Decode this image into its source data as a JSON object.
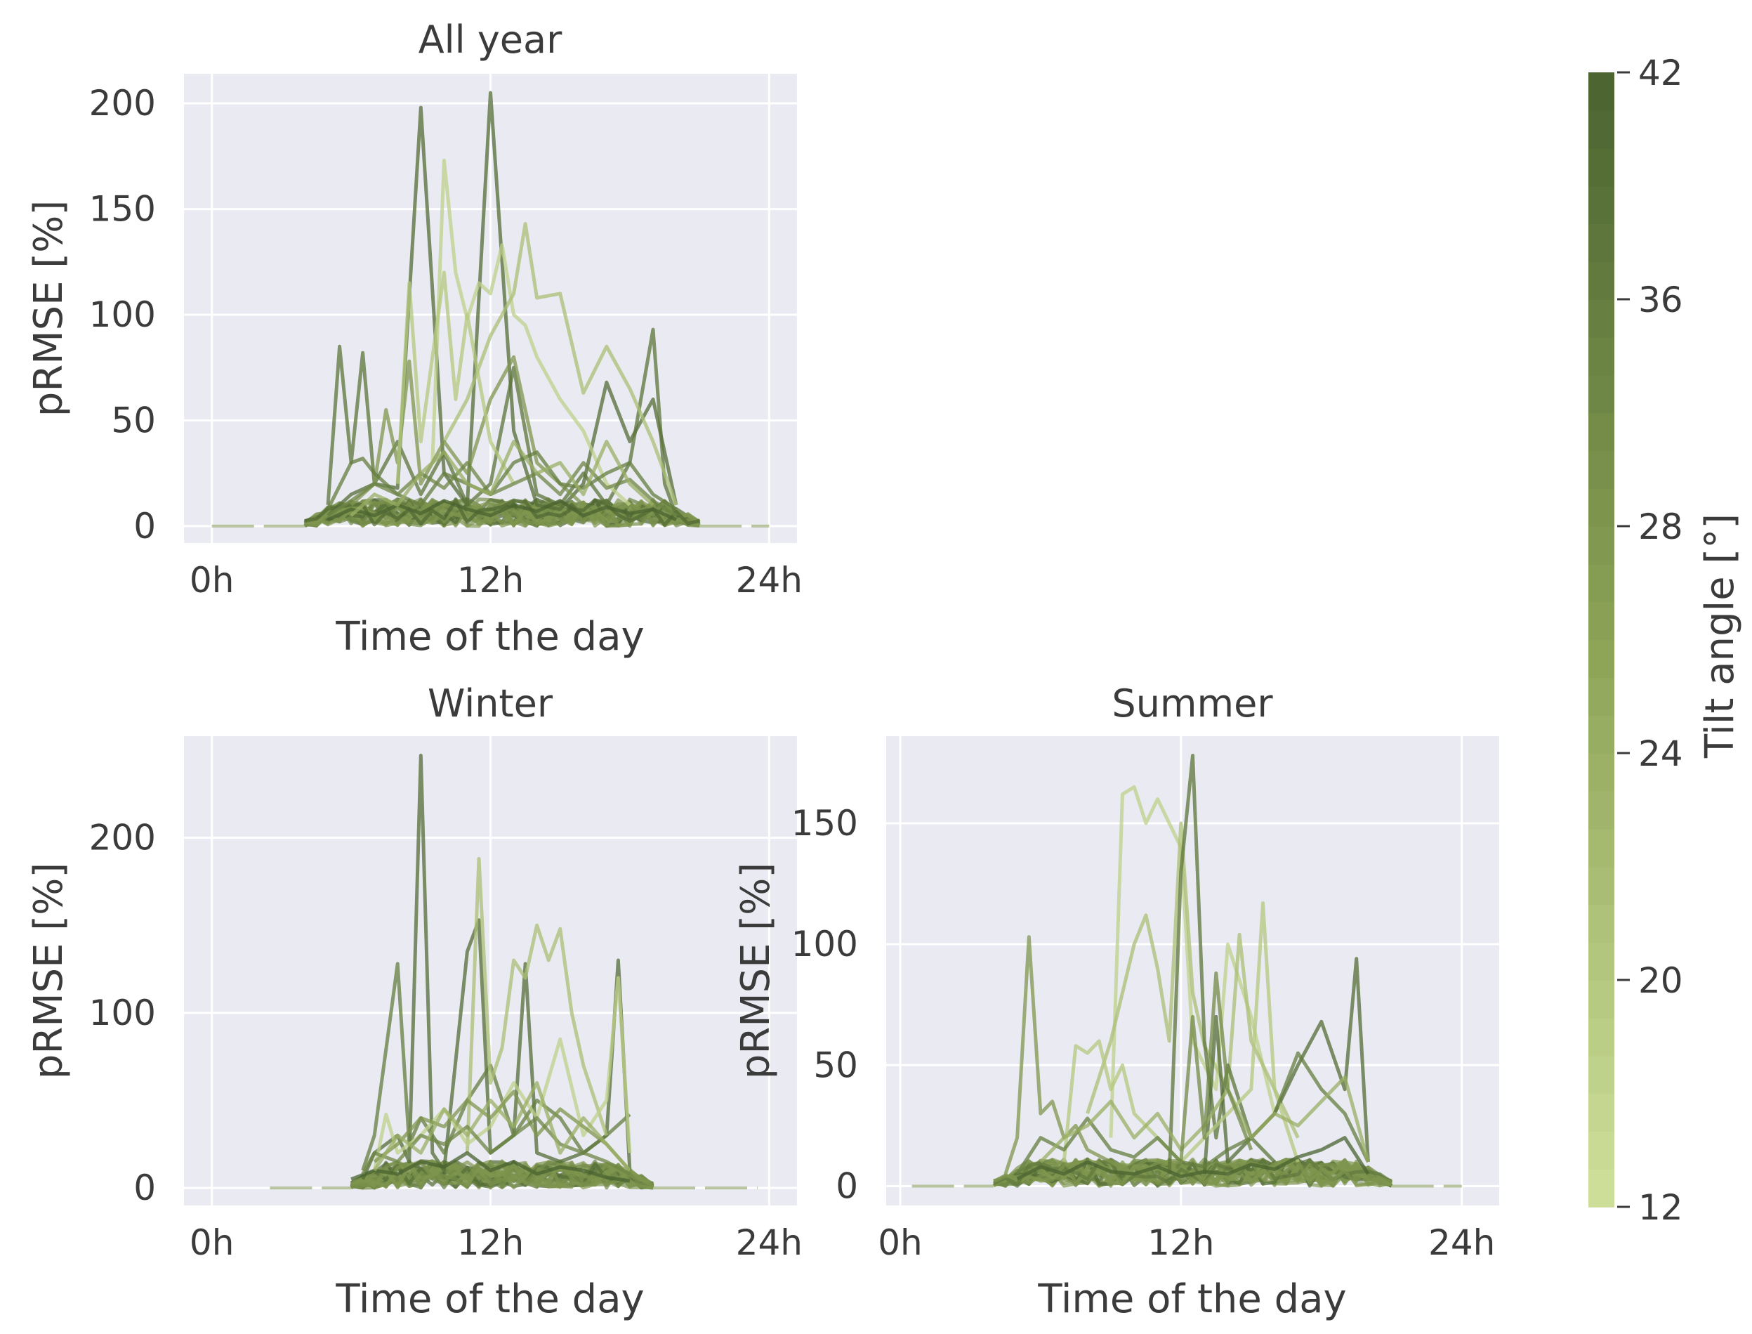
{
  "chart_data": [
    {
      "type": "line",
      "title": "All year",
      "xlabel": "Time of the day",
      "ylabel": "pRMSE [%]",
      "xlim": [
        -1.2,
        25.2
      ],
      "ylim": [
        -8,
        214
      ],
      "xticks": [
        {
          "v": 0,
          "label": "0h"
        },
        {
          "v": 12,
          "label": "12h"
        },
        {
          "v": 24,
          "label": "24h"
        }
      ],
      "yticks": [
        {
          "v": 0,
          "label": "0"
        },
        {
          "v": 50,
          "label": "50"
        },
        {
          "v": 100,
          "label": "100"
        },
        {
          "v": 150,
          "label": "150"
        },
        {
          "v": 200,
          "label": "200"
        }
      ],
      "day_range": [
        4.0,
        21.0
      ],
      "flat_range": [
        0,
        24
      ],
      "series": [
        {
          "tilt": 40,
          "x": [
            5.0,
            6.0,
            7.0,
            8.0,
            9.0,
            10.0,
            11.0,
            12.0,
            13.0,
            14.0,
            15.0,
            16.0,
            17.0,
            18.0,
            19.0,
            20.0
          ],
          "y": [
            5,
            15,
            20,
            18,
            198,
            25,
            10,
            205,
            45,
            10,
            8,
            20,
            68,
            40,
            60,
            10
          ]
        },
        {
          "tilt": 38,
          "x": [
            5.0,
            5.5,
            6.0,
            6.5,
            7.0,
            8.0,
            9.0,
            10.0,
            11.0,
            12.0,
            13.0,
            14.0,
            15.0,
            16.0,
            17.0,
            18.0,
            19.0,
            19.5,
            20.0
          ],
          "y": [
            10,
            85,
            30,
            82,
            20,
            40,
            15,
            35,
            10,
            20,
            75,
            15,
            10,
            25,
            10,
            30,
            93,
            20,
            5
          ]
        },
        {
          "tilt": 16,
          "x": [
            9.5,
            10.0,
            10.5,
            11.0,
            11.5,
            12.0,
            12.5,
            13.0,
            13.5,
            14.0,
            15.0,
            16.0,
            17.0,
            18.0
          ],
          "y": [
            30,
            173,
            120,
            98,
            115,
            110,
            133,
            100,
            95,
            80,
            60,
            45,
            20,
            10
          ]
        },
        {
          "tilt": 20,
          "x": [
            10.0,
            11.0,
            12.0,
            13.0,
            13.5,
            14.0,
            15.0,
            16.0,
            17.0,
            18.0,
            19.0,
            20.0
          ],
          "y": [
            40,
            60,
            90,
            110,
            143,
            108,
            110,
            63,
            85,
            65,
            40,
            10
          ]
        },
        {
          "tilt": 30,
          "x": [
            6.0,
            7.0,
            7.5,
            8.0,
            8.5,
            9.0,
            10.0,
            11.0,
            12.0,
            13.0,
            14.0,
            15.0,
            16.0
          ],
          "y": [
            10,
            20,
            55,
            30,
            78,
            20,
            40,
            25,
            60,
            80,
            30,
            20,
            10
          ]
        },
        {
          "tilt": 18,
          "x": [
            8.0,
            8.5,
            9.0,
            9.5,
            10.0,
            10.5,
            11.0,
            12.0,
            13.0
          ],
          "y": [
            20,
            115,
            40,
            80,
            120,
            60,
            100,
            40,
            20
          ]
        },
        {
          "tilt": 36,
          "x": [
            5.0,
            6.0,
            6.5,
            7.0,
            8.0,
            9.0,
            10.0,
            11.0,
            12.0,
            13.0,
            14.0,
            15.0,
            16.0,
            17.0,
            18.0,
            19.0,
            20.0
          ],
          "y": [
            8,
            30,
            32,
            25,
            15,
            10,
            25,
            20,
            15,
            30,
            35,
            20,
            18,
            25,
            30,
            15,
            8
          ]
        },
        {
          "tilt": 34,
          "x": [
            5.0,
            6.0,
            7.0,
            8.0,
            9.0,
            10.0,
            11.0,
            12.0,
            13.0,
            14.0,
            15.0,
            16.0,
            17.0,
            18.0,
            19.0,
            20.0
          ],
          "y": [
            5,
            12,
            20,
            15,
            25,
            18,
            30,
            15,
            20,
            25,
            15,
            30,
            18,
            22,
            12,
            5
          ]
        },
        {
          "tilt": 42,
          "x": [
            5.0,
            6.0,
            7.0,
            8.0,
            9.0,
            10.0,
            11.0,
            12.0,
            13.0,
            14.0,
            15.0,
            16.0,
            17.0,
            18.0,
            19.0,
            20.0
          ],
          "y": [
            3,
            8,
            5,
            10,
            6,
            12,
            8,
            5,
            10,
            7,
            12,
            5,
            9,
            6,
            8,
            3
          ]
        },
        {
          "tilt": 24,
          "x": [
            6.0,
            7.0,
            8.0,
            9.0,
            10.0,
            11.0,
            12.0,
            13.0,
            14.0,
            15.0,
            16.0,
            17.0,
            18.0,
            19.0
          ],
          "y": [
            5,
            15,
            10,
            25,
            35,
            20,
            15,
            40,
            25,
            30,
            15,
            40,
            20,
            10
          ]
        }
      ]
    },
    {
      "type": "line",
      "title": "Winter",
      "xlabel": "Time of the day",
      "ylabel": "pRMSE [%]",
      "xlim": [
        -1.2,
        25.2
      ],
      "ylim": [
        -10,
        258
      ],
      "xticks": [
        {
          "v": 0,
          "label": "0h"
        },
        {
          "v": 12,
          "label": "12h"
        },
        {
          "v": 24,
          "label": "24h"
        }
      ],
      "yticks": [
        {
          "v": 0,
          "label": "0"
        },
        {
          "v": 100,
          "label": "100"
        },
        {
          "v": 200,
          "label": "200"
        }
      ],
      "day_range": [
        6.0,
        19.0
      ],
      "flat_range": [
        2.5,
        23.5
      ],
      "series": [
        {
          "tilt": 40,
          "x": [
            6.5,
            7.0,
            8.0,
            8.5,
            9.0,
            9.5,
            10.0,
            11.0,
            11.5,
            12.0,
            13.0,
            13.5,
            14.0,
            15.0,
            16.0,
            17.0,
            17.5,
            18.0
          ],
          "y": [
            5,
            20,
            30,
            15,
            247,
            20,
            10,
            135,
            153,
            20,
            30,
            128,
            20,
            15,
            20,
            30,
            130,
            10
          ]
        },
        {
          "tilt": 36,
          "x": [
            6.5,
            7.0,
            8.0,
            8.5,
            9.0,
            10.0,
            11.0,
            12.0,
            13.0,
            14.0,
            15.0,
            16.0,
            17.0,
            18.0
          ],
          "y": [
            10,
            30,
            128,
            25,
            40,
            20,
            50,
            70,
            30,
            50,
            40,
            20,
            30,
            42
          ]
        },
        {
          "tilt": 20,
          "x": [
            11.0,
            11.5,
            12.0,
            12.5,
            13.0,
            13.5,
            14.0,
            14.5,
            15.0,
            15.5,
            16.0,
            16.5,
            17.0
          ],
          "y": [
            20,
            188,
            60,
            80,
            130,
            120,
            150,
            130,
            148,
            100,
            70,
            50,
            30
          ]
        },
        {
          "tilt": 16,
          "x": [
            7.0,
            7.5,
            8.0,
            9.0,
            10.0,
            11.0,
            12.0,
            13.0,
            14.0,
            15.0,
            16.0,
            17.0,
            17.5,
            18.0
          ],
          "y": [
            10,
            42,
            20,
            30,
            45,
            25,
            35,
            60,
            40,
            85,
            30,
            50,
            120,
            20
          ]
        },
        {
          "tilt": 30,
          "x": [
            7.0,
            8.0,
            9.0,
            10.0,
            11.0,
            12.0,
            13.0,
            14.0,
            15.0,
            16.0,
            17.0,
            18.0
          ],
          "y": [
            15,
            25,
            40,
            35,
            50,
            40,
            55,
            30,
            45,
            35,
            25,
            10
          ]
        },
        {
          "tilt": 42,
          "x": [
            6.0,
            7.0,
            8.0,
            9.0,
            10.0,
            11.0,
            12.0,
            13.0,
            14.0,
            15.0,
            16.0,
            17.0,
            18.0
          ],
          "y": [
            5,
            10,
            8,
            15,
            12,
            20,
            10,
            15,
            8,
            12,
            10,
            6,
            4
          ]
        },
        {
          "tilt": 34,
          "x": [
            6.5,
            7.0,
            8.0,
            9.0,
            10.0,
            11.0,
            12.0,
            13.0,
            14.0,
            15.0,
            16.0,
            17.0,
            18.0
          ],
          "y": [
            8,
            20,
            15,
            30,
            25,
            35,
            20,
            30,
            40,
            25,
            20,
            15,
            8
          ]
        },
        {
          "tilt": 24,
          "x": [
            7.0,
            8.0,
            9.0,
            10.0,
            11.0,
            12.0,
            13.0,
            14.0,
            15.0,
            16.0,
            17.0,
            18.0
          ],
          "y": [
            10,
            30,
            20,
            45,
            30,
            50,
            35,
            60,
            20,
            40,
            25,
            10
          ]
        }
      ]
    },
    {
      "type": "line",
      "title": "Summer",
      "xlabel": "Time of the day",
      "ylabel": "pRMSE [%]",
      "xlim": [
        -0.6,
        25.6
      ],
      "ylim": [
        -8,
        186
      ],
      "xticks": [
        {
          "v": 0,
          "label": "0h"
        },
        {
          "v": 12,
          "label": "12h"
        },
        {
          "v": 24,
          "label": "24h"
        }
      ],
      "yticks": [
        {
          "v": 0,
          "label": "0"
        },
        {
          "v": 50,
          "label": "50"
        },
        {
          "v": 100,
          "label": "100"
        },
        {
          "v": 150,
          "label": "150"
        }
      ],
      "day_range": [
        4.0,
        21.0
      ],
      "flat_range": [
        0.5,
        24.0
      ],
      "series": [
        {
          "tilt": 16,
          "x": [
            9.0,
            9.5,
            10.0,
            10.5,
            11.0,
            11.5,
            12.0,
            12.5,
            13.0,
            13.5,
            14.0,
            15.0,
            16.0
          ],
          "y": [
            20,
            162,
            165,
            150,
            160,
            150,
            140,
            60,
            50,
            40,
            100,
            70,
            30
          ]
        },
        {
          "tilt": 20,
          "x": [
            8.0,
            9.0,
            10.0,
            10.5,
            11.0,
            11.5,
            12.0,
            12.5,
            13.0,
            14.0,
            14.5,
            15.0,
            16.0,
            17.0
          ],
          "y": [
            30,
            60,
            100,
            112,
            90,
            60,
            150,
            80,
            58,
            40,
            104,
            60,
            40,
            20
          ]
        },
        {
          "tilt": 38,
          "x": [
            11.5,
            12.0,
            12.5,
            13.0,
            13.5,
            14.0,
            15.0,
            16.0
          ],
          "y": [
            5,
            130,
            178,
            60,
            20,
            50,
            20,
            10
          ]
        },
        {
          "tilt": 30,
          "x": [
            4.5,
            5.0,
            5.5,
            6.0,
            6.5,
            7.0,
            7.5,
            8.0,
            9.0,
            10.0
          ],
          "y": [
            5,
            20,
            103,
            30,
            35,
            20,
            25,
            15,
            10,
            5
          ]
        },
        {
          "tilt": 40,
          "x": [
            13.0,
            13.5,
            14.0,
            15.0,
            16.0,
            17.0,
            18.0,
            19.0,
            19.5,
            20.0
          ],
          "y": [
            5,
            70,
            10,
            20,
            30,
            50,
            68,
            40,
            94,
            10
          ]
        },
        {
          "tilt": 18,
          "x": [
            7.0,
            7.5,
            8.0,
            8.5,
            9.0,
            9.5,
            10.0,
            11.0,
            12.0,
            13.0,
            14.0,
            15.0,
            15.5,
            16.0,
            17.0
          ],
          "y": [
            10,
            58,
            55,
            60,
            40,
            50,
            30,
            20,
            10,
            20,
            30,
            40,
            117,
            40,
            10
          ]
        },
        {
          "tilt": 36,
          "x": [
            5.0,
            6.0,
            7.0,
            8.0,
            9.0,
            10.0,
            11.0,
            12.0,
            13.0,
            14.0,
            15.0,
            16.0,
            17.0,
            18.0,
            19.0,
            20.0
          ],
          "y": [
            5,
            20,
            15,
            28,
            15,
            12,
            20,
            10,
            8,
            15,
            20,
            30,
            55,
            40,
            30,
            10
          ]
        },
        {
          "tilt": 42,
          "x": [
            5.0,
            6.0,
            7.0,
            8.0,
            9.0,
            10.0,
            11.0,
            12.0,
            13.0,
            14.0,
            15.0,
            16.0,
            17.0,
            18.0,
            19.0,
            20.0
          ],
          "y": [
            3,
            8,
            5,
            10,
            6,
            5,
            8,
            4,
            6,
            5,
            9,
            7,
            12,
            15,
            20,
            5
          ]
        },
        {
          "tilt": 24,
          "x": [
            6.0,
            7.0,
            8.0,
            9.0,
            10.0,
            11.0,
            12.0,
            13.0,
            14.0,
            15.0,
            16.0,
            17.0,
            18.0,
            19.0,
            20.0
          ],
          "y": [
            10,
            20,
            25,
            35,
            20,
            30,
            15,
            25,
            40,
            20,
            30,
            25,
            35,
            45,
            10
          ]
        },
        {
          "tilt": 33,
          "x": [
            12.0,
            12.5,
            13.0,
            13.5,
            14.0,
            15.0
          ],
          "y": [
            10,
            70,
            20,
            88,
            40,
            15
          ]
        }
      ]
    }
  ],
  "colorbar": {
    "label": "Tilt angle [°]",
    "min": 12,
    "max": 42,
    "ticks": [
      {
        "v": 12,
        "label": "12"
      },
      {
        "v": 20,
        "label": "20"
      },
      {
        "v": 24,
        "label": "24"
      },
      {
        "v": 28,
        "label": "28"
      },
      {
        "v": 36,
        "label": "36"
      },
      {
        "v": 42,
        "label": "42"
      }
    ],
    "colors": {
      "low": "#cfe09b",
      "mid": "#8ca356",
      "high": "#4a6330"
    }
  }
}
